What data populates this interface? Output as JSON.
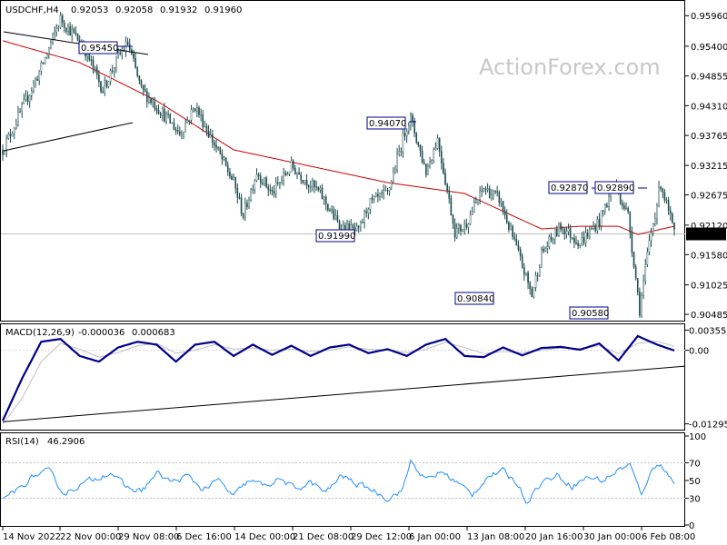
{
  "chart_data": [
    {
      "type": "candlestick",
      "title": "USDCHF,H4",
      "ohlc_header": [
        "0.92053",
        "0.92058",
        "0.91932",
        "0.91960"
      ],
      "watermark": "ActionForex.com",
      "ylim": [
        0.9042,
        0.9618
      ],
      "y_ticks": [
        "0.95960",
        "0.95400",
        "0.94855",
        "0.94310",
        "0.93765",
        "0.93215",
        "0.92675",
        "0.92120",
        "0.91580",
        "0.91025",
        "0.90485"
      ],
      "y_tick_values": [
        0.9596,
        0.954,
        0.94855,
        0.9431,
        0.93765,
        0.93215,
        0.92675,
        0.9212,
        0.9158,
        0.91025,
        0.90485
      ],
      "current_price": "0.91960",
      "current_value": 0.9196,
      "x_ticks": [
        "14 Nov 2022",
        "22 Nov 00:00",
        "29 Nov 08:00",
        "6 Dec 16:00",
        "14 Dec 00:00",
        "21 Dec 08:00",
        "29 Dec 12:00",
        "6 Jan 00:00",
        "13 Jan 08:00",
        "20 Jan 16:00",
        "30 Jan 00:00",
        "6 Feb 08:00"
      ],
      "price_path_index": [
        0,
        12,
        20,
        30,
        42,
        52,
        60,
        65,
        72,
        80,
        92,
        100,
        110,
        120,
        125,
        132,
        140,
        150,
        165,
        175,
        185,
        190,
        200,
        210,
        212,
        220,
        226,
        235,
        240,
        250,
        258,
        266,
        275,
        280,
        290,
        300,
        310,
        318,
        325,
        331,
        336,
        342,
        349
      ],
      "price_path_value": [
        0.935,
        0.944,
        0.95,
        0.959,
        0.954,
        0.946,
        0.952,
        0.9545,
        0.946,
        0.943,
        0.938,
        0.943,
        0.936,
        0.929,
        0.923,
        0.931,
        0.927,
        0.932,
        0.927,
        0.921,
        0.9199,
        0.925,
        0.927,
        0.9395,
        0.9407,
        0.931,
        0.937,
        0.92,
        0.921,
        0.928,
        0.926,
        0.918,
        0.9084,
        0.916,
        0.921,
        0.918,
        0.922,
        0.9287,
        0.923,
        0.9058,
        0.918,
        0.9289,
        0.9196
      ],
      "moving_average": {
        "index": [
          0,
          40,
          80,
          120,
          160,
          200,
          240,
          280,
          300,
          320,
          330,
          349
        ],
        "value": [
          0.955,
          0.951,
          0.944,
          0.935,
          0.932,
          0.929,
          0.927,
          0.9205,
          0.921,
          0.921,
          0.9195,
          0.921
        ]
      },
      "labels": [
        {
          "text": "0.95450",
          "value": 0.9545
        },
        {
          "text": "0.94070",
          "value": 0.9407
        },
        {
          "text": "0.91990",
          "value": 0.9199
        },
        {
          "text": "0.90840",
          "value": 0.9084
        },
        {
          "text": "0.92870",
          "value": 0.9287
        },
        {
          "text": "0.92890",
          "value": 0.9289
        },
        {
          "text": "0.90580",
          "value": 0.9058
        }
      ],
      "colors": {
        "candle": "#1e4d4d",
        "ma": "#cc0000",
        "box_border": "#00008b",
        "grid": "#c0c0c0"
      }
    },
    {
      "type": "line",
      "title": "MACD(12,26,9)",
      "values_header": [
        "-0.000036",
        "0.000683"
      ],
      "ylim": [
        -0.0135,
        0.0041
      ],
      "y_ticks": [
        "0.003558",
        "0.00",
        "-0.012957"
      ],
      "y_tick_values": [
        0.003558,
        0.0,
        -0.012957
      ],
      "series": [
        {
          "index": [
            0,
            10,
            20,
            30,
            40,
            50,
            60,
            70,
            80,
            90,
            100,
            110,
            120,
            130,
            140,
            150,
            160,
            170,
            180,
            190,
            200,
            210,
            220,
            230,
            240,
            250,
            260,
            270,
            280,
            290,
            300,
            310,
            320,
            330,
            340,
            349
          ],
          "value": [
            -0.0124,
            -0.005,
            0.0015,
            0.002,
            -0.001,
            -0.002,
            0.0005,
            0.0015,
            0.001,
            -0.002,
            0.001,
            0.0015,
            -0.001,
            0.001,
            -0.0008,
            0.0008,
            -0.001,
            0.0005,
            0.001,
            -0.0005,
            0.0002,
            -0.001,
            0.001,
            0.002,
            -0.001,
            -0.0012,
            0.0005,
            -0.0009,
            0.0004,
            0.0006,
            0.0001,
            0.0012,
            -0.0018,
            0.0025,
            0.001,
            -3.6e-05
          ],
          "color": "#00008b"
        },
        {
          "index": [
            0,
            10,
            20,
            30,
            40,
            50,
            60,
            70,
            80,
            90,
            100,
            110,
            120,
            130,
            140,
            150,
            160,
            170,
            180,
            190,
            200,
            210,
            220,
            230,
            240,
            250,
            260,
            270,
            280,
            290,
            300,
            310,
            320,
            330,
            340,
            349
          ],
          "value": [
            -0.013,
            -0.0085,
            -0.002,
            0.0012,
            0.0002,
            -0.0012,
            -0.0004,
            0.0008,
            0.0012,
            -0.0005,
            0.0,
            0.001,
            0.0002,
            0.0004,
            0.0,
            0.0002,
            -0.0002,
            0.0,
            0.0006,
            0.0002,
            0.0,
            -0.0004,
            0.0002,
            0.0014,
            0.0005,
            -0.0006,
            -0.0002,
            -0.0004,
            0.0,
            0.0004,
            0.0003,
            0.0008,
            -0.0006,
            0.0012,
            0.0016,
            0.000683
          ],
          "color": "#c0c0c0"
        }
      ],
      "trendline": {
        "start": [
          0,
          -0.0126
        ],
        "end": [
          349,
          -0.0028
        ]
      }
    },
    {
      "type": "line",
      "title": "RSI(14)",
      "values_header": [
        "46.2906"
      ],
      "ylim": [
        0,
        100
      ],
      "y_ticks": [
        "100",
        "70",
        "50",
        "30",
        "0"
      ],
      "y_tick_values": [
        100,
        70,
        50,
        30,
        0
      ],
      "series": [
        {
          "index": [
            0,
            8,
            16,
            24,
            32,
            40,
            48,
            56,
            64,
            72,
            80,
            88,
            96,
            104,
            112,
            120,
            128,
            136,
            144,
            152,
            160,
            168,
            176,
            184,
            192,
            200,
            208,
            212,
            220,
            228,
            236,
            244,
            252,
            260,
            268,
            272,
            280,
            288,
            296,
            304,
            312,
            320,
            326,
            332,
            336,
            342,
            349
          ],
          "value": [
            30,
            40,
            55,
            60,
            35,
            45,
            52,
            60,
            42,
            38,
            58,
            48,
            55,
            40,
            50,
            32,
            50,
            44,
            52,
            40,
            48,
            36,
            56,
            46,
            40,
            30,
            40,
            72,
            50,
            60,
            48,
            34,
            55,
            60,
            46,
            26,
            48,
            56,
            44,
            54,
            50,
            62,
            68,
            32,
            58,
            70,
            46.2906
          ],
          "color": "#1e90ff"
        }
      ]
    }
  ]
}
